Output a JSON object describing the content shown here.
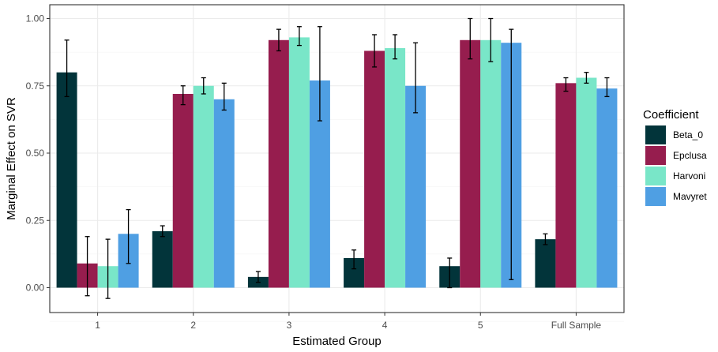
{
  "chart_data": {
    "type": "bar",
    "xlabel": "Estimated Group",
    "ylabel": "Marginal Effect on SVR",
    "ylim": [
      -0.1,
      1.05
    ],
    "yticks": [
      0.0,
      0.25,
      0.5,
      0.75,
      1.0
    ],
    "ytick_labels": [
      "0.00",
      "0.25",
      "0.50",
      "0.75",
      "1.00"
    ],
    "categories": [
      "1",
      "2",
      "3",
      "4",
      "5",
      "Full Sample"
    ],
    "grid": true,
    "legend": {
      "title": "Coefficient",
      "position": "right"
    },
    "series": [
      {
        "name": "Beta_0",
        "color": "#02343a",
        "values": [
          0.8,
          0.21,
          0.04,
          0.11,
          0.08,
          0.18
        ],
        "err_low": [
          0.71,
          0.19,
          0.02,
          0.07,
          0.0,
          0.16
        ],
        "err_high": [
          0.92,
          0.23,
          0.06,
          0.14,
          0.11,
          0.2
        ]
      },
      {
        "name": "Epclusa",
        "color": "#961d4e",
        "values": [
          0.09,
          0.72,
          0.92,
          0.88,
          0.92,
          0.76
        ],
        "err_low": [
          -0.03,
          0.68,
          0.88,
          0.82,
          0.85,
          0.73
        ],
        "err_high": [
          0.19,
          0.75,
          0.96,
          0.94,
          1.0,
          0.78
        ]
      },
      {
        "name": "Harvoni",
        "color": "#79e6c8",
        "values": [
          0.08,
          0.75,
          0.93,
          0.89,
          0.92,
          0.78
        ],
        "err_low": [
          -0.04,
          0.72,
          0.9,
          0.85,
          0.84,
          0.76
        ],
        "err_high": [
          0.18,
          0.78,
          0.97,
          0.94,
          1.0,
          0.8
        ]
      },
      {
        "name": "Mavyret",
        "color": "#4f9fe3",
        "values": [
          0.2,
          0.7,
          0.77,
          0.75,
          0.91,
          0.74
        ],
        "err_low": [
          0.09,
          0.66,
          0.62,
          0.65,
          0.03,
          0.71
        ],
        "err_high": [
          0.29,
          0.76,
          0.97,
          0.91,
          0.96,
          0.78
        ]
      }
    ]
  }
}
